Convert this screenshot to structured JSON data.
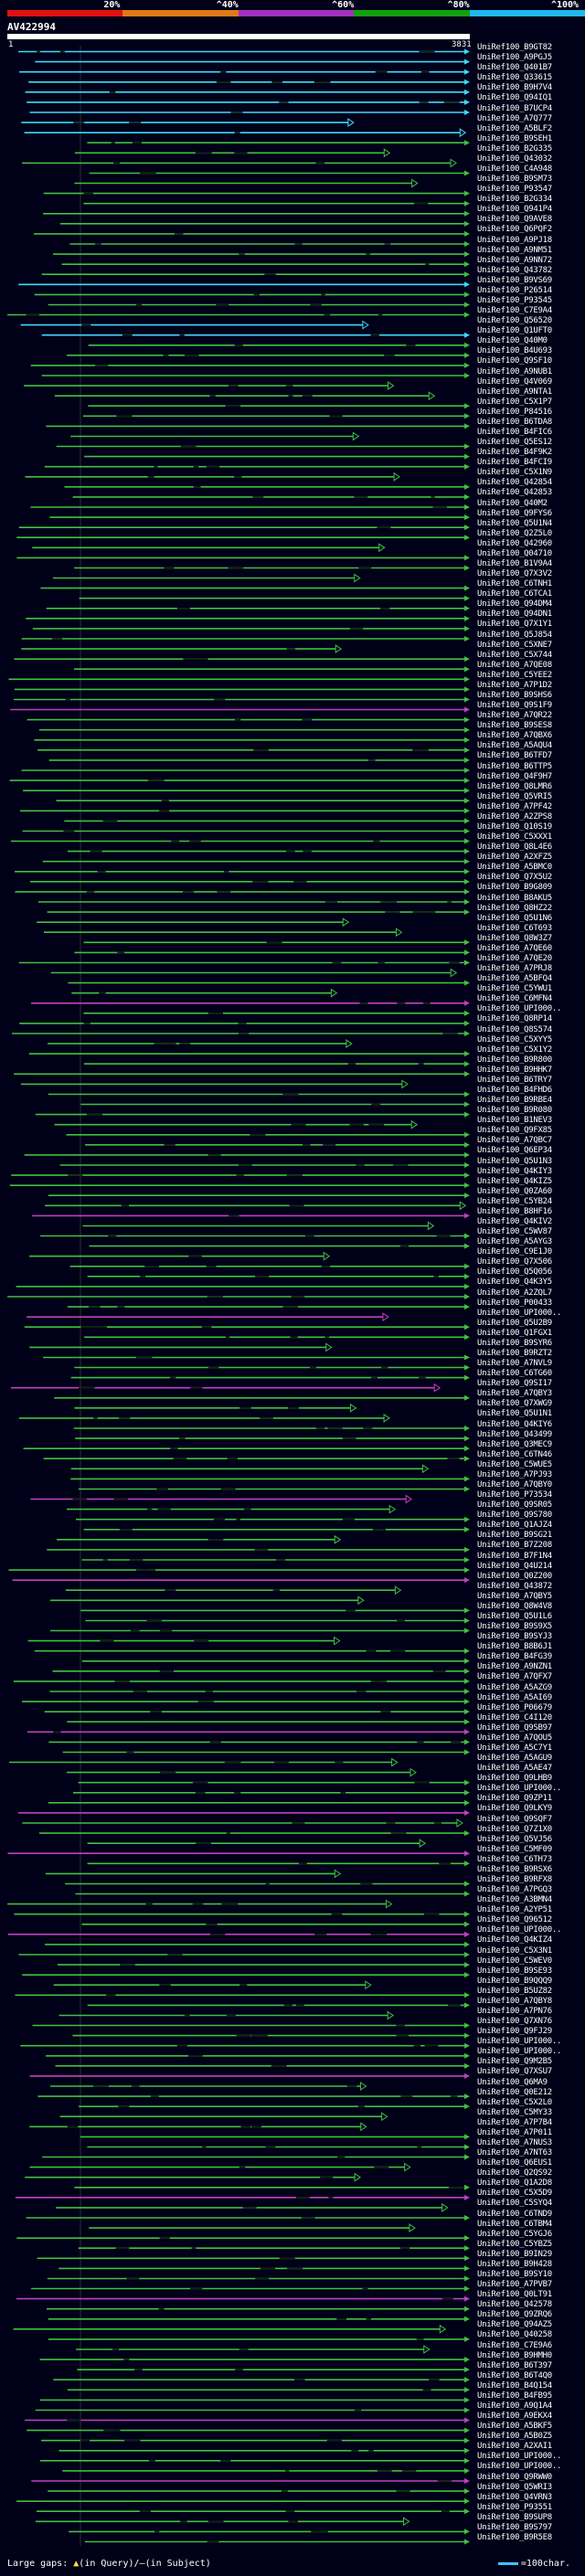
{
  "scale": {
    "ticks": [
      "20%",
      "^40%",
      "^60%",
      "^80%",
      "^100%"
    ],
    "colors": [
      "#e01010",
      "#e07818",
      "#a030c0",
      "#10a010",
      "#20b8f0"
    ]
  },
  "query": {
    "id": "AV422994",
    "start": "1",
    "end": "3831"
  },
  "colors": {
    "cyan": "#40d8ff",
    "green": "#40c040",
    "magenta": "#c040c0",
    "background": "#000018"
  },
  "hits": [
    "UniRef100_B9GT82",
    "UniRef100_A9PGJ5",
    "UniRef100_Q401B7",
    "UniRef100_Q33615",
    "UniRef100_B9H7V4",
    "UniRef100_Q94IQ1",
    "UniRef100_B7UCP4",
    "UniRef100_A7Q777",
    "UniRef100_A5BLF2",
    "UniRef100_B9SEH1",
    "UniRef100_B2G335",
    "UniRef100_Q43032",
    "UniRef100_C4A948",
    "UniRef100_B9SM73",
    "UniRef100_P93547",
    "UniRef100_B2G334",
    "UniRef100_Q941P4",
    "UniRef100_Q9AVE8",
    "UniRef100_Q6PQF2",
    "UniRef100_A9PJ18",
    "UniRef100_A9NM51",
    "UniRef100_A9NN72",
    "UniRef100_Q43782",
    "UniRef100_B9VS69",
    "UniRef100_P26514",
    "UniRef100_P93545",
    "UniRef100_C7E9A4",
    "UniRef100_Q56520",
    "UniRef100_Q1UFT0",
    "UniRef100_Q40M0",
    "UniRef100_B4U693",
    "UniRef100_Q9SF10",
    "UniRef100_A9NUB1",
    "UniRef100_Q4V069",
    "UniRef100_A9NTA1",
    "UniRef100_C5X1P7",
    "UniRef100_P84516",
    "UniRef100_B6TDA8",
    "UniRef100_B4FIC6",
    "UniRef100_Q5ES12",
    "UniRef100_B4F9K2",
    "UniRef100_B4FCI9",
    "UniRef100_C5X1N9",
    "UniRef100_Q42854",
    "UniRef100_Q42853",
    "UniRef100_Q40M2",
    "UniRef100_Q9FYS6",
    "UniRef100_Q5U1N4",
    "UniRef100_Q2Z5L0",
    "UniRef100_Q42960",
    "UniRef100_Q04710",
    "UniRef100_B1V9A4",
    "UniRef100_Q7X3V2",
    "UniRef100_C6TNH1",
    "UniRef100_C6TCA1",
    "UniRef100_Q94DM4",
    "UniRef100_Q94DN1",
    "UniRef100_Q7X1Y1",
    "UniRef100_Q5J854",
    "UniRef100_C5XNE7",
    "UniRef100_C5X744",
    "UniRef100_A7QE08",
    "UniRef100_C5YEE2",
    "UniRef100_A7P1D2",
    "UniRef100_B9SHS6",
    "UniRef100_Q9S1F9",
    "UniRef100_A7QR22",
    "UniRef100_B9SES8",
    "UniRef100_A7QBX6",
    "UniRef100_A5AQU4",
    "UniRef100_B6TFD7",
    "UniRef100_B6TTP5",
    "UniRef100_Q4F9H7",
    "UniRef100_Q8LMR6",
    "UniRef100_Q5VRI5",
    "UniRef100_A7PF42",
    "UniRef100_A2ZPS8",
    "UniRef100_Q10S19",
    "UniRef100_C5XXX1",
    "UniRef100_Q8L4E6",
    "UniRef100_A2XFZ5",
    "UniRef100_A5BMC0",
    "UniRef100_Q7X5U2",
    "UniRef100_B9G809",
    "UniRef100_B8AKU5",
    "UniRef100_Q8HZ22",
    "UniRef100_Q5U1N6",
    "UniRef100_C6T693",
    "UniRef100_Q8W3Z7",
    "UniRef100_A7QE60",
    "UniRef100_A7QE20",
    "UniRef100_A7PRJ8",
    "UniRef100_A5BFQ4",
    "UniRef100_C5YWU1",
    "UniRef100_C6MFN4",
    "UniRef100_UPI000..",
    "UniRef100_Q8RP14",
    "UniRef100_Q8S574",
    "UniRef100_C5XYY5",
    "UniRef100_C5X1Y2",
    "UniRef100_B9R800",
    "UniRef100_B9HHK7",
    "UniRef100_B6TRY7",
    "UniRef100_B4FHD6",
    "UniRef100_B9RBE4",
    "UniRef100_B9R080",
    "UniRef100_B1NEV3",
    "UniRef100_Q9FX85",
    "UniRef100_A7QBC7",
    "UniRef100_Q6EP34",
    "UniRef100_Q5U1N3",
    "UniRef100_Q4KIY3",
    "UniRef100_Q4KIZ5",
    "UniRef100_Q0ZA60",
    "UniRef100_C5YB24",
    "UniRef100_B8HF16",
    "UniRef100_Q4KIV2",
    "UniRef100_C5WV87",
    "UniRef100_A5AYG3",
    "UniRef100_C9E1J0",
    "UniRef100_Q7X506",
    "UniRef100_Q5Q056",
    "UniRef100_Q4K3Y5",
    "UniRef100_A2ZQL7",
    "UniRef100_P00433",
    "UniRef100_UPI000..",
    "UniRef100_Q5U2B9",
    "UniRef100_Q1FGX1",
    "UniRef100_B9SYR6",
    "UniRef100_B9RZT2",
    "UniRef100_A7NVL9",
    "UniRef100_C6TG60",
    "UniRef100_Q9SI17",
    "UniRef100_A7QBY3",
    "UniRef100_Q7XWG9",
    "UniRef100_Q5U1N1",
    "UniRef100_Q4KIY6",
    "UniRef100_Q43499",
    "UniRef100_Q3MEC9",
    "UniRef100_C6TN46",
    "UniRef100_C5WUE5",
    "UniRef100_A7PJ93",
    "UniRef100_A7QBY0",
    "UniRef100_P73534",
    "UniRef100_Q9SR05",
    "UniRef100_Q9S780",
    "UniRef100_Q1AJZ4",
    "UniRef100_B9SG21",
    "UniRef100_B7Z208",
    "UniRef100_B7F1N4",
    "UniRef100_Q4U214",
    "UniRef100_Q0Z200",
    "UniRef100_Q43872",
    "UniRef100_A7QBY5",
    "UniRef100_Q8W4V8",
    "UniRef100_Q5U1L6",
    "UniRef100_B9S9X5",
    "UniRef100_B9SYJ3",
    "UniRef100_B8B6J1",
    "UniRef100_B4FG39",
    "UniRef100_A9NZN1",
    "UniRef100_A7QFX7",
    "UniRef100_A5AZG9",
    "UniRef100_A5AI69",
    "UniRef100_P06679",
    "UniRef100_C4I120",
    "UniRef100_Q9SB97",
    "UniRef100_A7QOU5",
    "UniRef100_A5C7Y1",
    "UniRef100_A5AGU9",
    "UniRef100_A5AE47",
    "UniRef100_Q9LHB9",
    "UniRef100_UPI000..",
    "UniRef100_Q9ZP11",
    "UniRef100_Q9LKY9",
    "UniRef100_Q9SQF7",
    "UniRef100_Q7Z1X0",
    "UniRef100_Q5VJ56",
    "UniRef100_C5MF09",
    "UniRef100_C6TH73",
    "UniRef100_B9RSX6",
    "UniRef100_B9RFX8",
    "UniRef100_A7PGQ3",
    "UniRef100_A3BMN4",
    "UniRef100_A2YP51",
    "UniRef100_Q96512",
    "UniRef100_UPI000..",
    "UniRef100_Q4KIZ4",
    "UniRef100_C5X3N1",
    "UniRef100_C5WEV0",
    "UniRef100_B9SE93",
    "UniRef100_B9QQQ9",
    "UniRef100_B5UZ82",
    "UniRef100_A7QBY8",
    "UniRef100_A7PN76",
    "UniRef100_Q7XN76",
    "UniRef100_Q9FJ29",
    "UniRef100_UPI000..",
    "UniRef100_UPI000..",
    "UniRef100_Q9M2B5",
    "UniRef100_Q7XSU7",
    "UniRef100_Q6MA9",
    "UniRef100_Q0E212",
    "UniRef100_C5X2L0",
    "UniRef100_C5MY33",
    "UniRef100_A7P7B4",
    "UniRef100_A7P011",
    "UniRef100_A7NUS3",
    "UniRef100_A7NT63",
    "UniRef100_Q6EUS1",
    "UniRef100_Q2QS92",
    "UniRef100_Q1A2D8",
    "UniRef100_C5X5D9",
    "UniRef100_C5SYQ4",
    "UniRef100_C6TND9",
    "UniRef100_C6TBM4",
    "UniRef100_C5YGJ6",
    "UniRef100_C5YBZ5",
    "UniRef100_B9IN29",
    "UniRef100_B9H428",
    "UniRef100_B9SY10",
    "UniRef100_A7PVB7",
    "UniRef100_Q0LT91",
    "UniRef100_Q42578",
    "UniRef100_Q9ZRQ6",
    "UniRef100_Q94AZ5",
    "UniRef100_Q40258",
    "UniRef100_C7E9A6",
    "UniRef100_B9HMH0",
    "UniRef100_B6T397",
    "UniRef100_B6T4Q0",
    "UniRef100_B4Q154",
    "UniRef100_B4FB95",
    "UniRef100_A9Q1A4",
    "UniRef100_A9EKX4",
    "UniRef100_A5BKF5",
    "UniRef100_A5B0Z5",
    "UniRef100_A2XAI1",
    "UniRef100_UPI000..",
    "UniRef100_UPI000..",
    "UniRef100_Q9RWW0",
    "UniRef100_Q5WRI3",
    "UniRef100_Q4VRN3",
    "UniRef100_P93551",
    "UniRef100_B9SUP8",
    "UniRef100_B9S797",
    "UniRef100_B9R5E8"
  ],
  "legend": {
    "large_gaps": "Large gaps:",
    "in_query": "(in Query)",
    "in_subject": "(in Subject)",
    "scale_note": "=100char."
  }
}
